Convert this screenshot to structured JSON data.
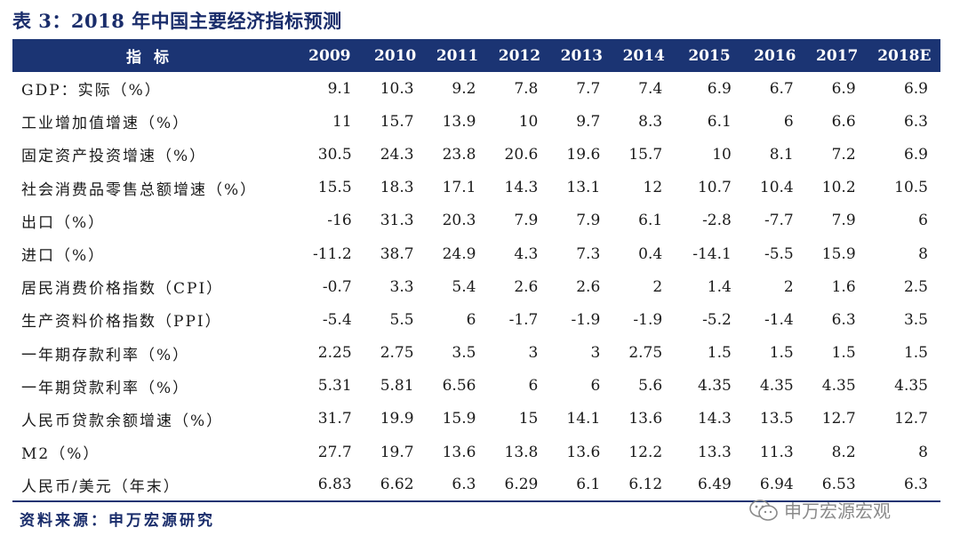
{
  "title": "表 3：2018 年中国主要经济指标预测",
  "table": {
    "header_label": "指标",
    "years": [
      "2009",
      "2010",
      "2011",
      "2012",
      "2013",
      "2014",
      "2015",
      "2016",
      "2017",
      "2018E"
    ],
    "rows": [
      {
        "label": "GDP：实际（%）",
        "values": [
          "9.1",
          "10.3",
          "9.2",
          "7.8",
          "7.7",
          "7.4",
          "6.9",
          "6.7",
          "6.9",
          "6.9"
        ]
      },
      {
        "label": "工业增加值增速（%）",
        "values": [
          "11",
          "15.7",
          "13.9",
          "10",
          "9.7",
          "8.3",
          "6.1",
          "6",
          "6.6",
          "6.3"
        ]
      },
      {
        "label": "固定资产投资增速（%）",
        "values": [
          "30.5",
          "24.3",
          "23.8",
          "20.6",
          "19.6",
          "15.7",
          "10",
          "8.1",
          "7.2",
          "6.9"
        ]
      },
      {
        "label": "社会消费品零售总额增速（%）",
        "values": [
          "15.5",
          "18.3",
          "17.1",
          "14.3",
          "13.1",
          "12",
          "10.7",
          "10.4",
          "10.2",
          "10.5"
        ]
      },
      {
        "label": "出口（%）",
        "values": [
          "-16",
          "31.3",
          "20.3",
          "7.9",
          "7.9",
          "6.1",
          "-2.8",
          "-7.7",
          "7.9",
          "6"
        ]
      },
      {
        "label": "进口（%）",
        "values": [
          "-11.2",
          "38.7",
          "24.9",
          "4.3",
          "7.3",
          "0.4",
          "-14.1",
          "-5.5",
          "15.9",
          "8"
        ]
      },
      {
        "label": "居民消费价格指数（CPI）",
        "values": [
          "-0.7",
          "3.3",
          "5.4",
          "2.6",
          "2.6",
          "2",
          "1.4",
          "2",
          "1.6",
          "2.5"
        ]
      },
      {
        "label": "生产资料价格指数（PPI）",
        "values": [
          "-5.4",
          "5.5",
          "6",
          "-1.7",
          "-1.9",
          "-1.9",
          "-5.2",
          "-1.4",
          "6.3",
          "3.5"
        ]
      },
      {
        "label": "一年期存款利率（%）",
        "values": [
          "2.25",
          "2.75",
          "3.5",
          "3",
          "3",
          "2.75",
          "1.5",
          "1.5",
          "1.5",
          "1.5"
        ]
      },
      {
        "label": "一年期贷款利率（%）",
        "values": [
          "5.31",
          "5.81",
          "6.56",
          "6",
          "6",
          "5.6",
          "4.35",
          "4.35",
          "4.35",
          "4.35"
        ]
      },
      {
        "label": "人民币贷款余额增速（%）",
        "values": [
          "31.7",
          "19.9",
          "15.9",
          "15",
          "14.1",
          "13.6",
          "14.3",
          "13.5",
          "12.7",
          "12.7"
        ]
      },
      {
        "label": "M2（%）",
        "values": [
          "27.7",
          "19.7",
          "13.6",
          "13.8",
          "13.6",
          "12.2",
          "13.3",
          "11.3",
          "8.2",
          "8"
        ]
      },
      {
        "label": "人民币/美元（年末）",
        "values": [
          "6.83",
          "6.62",
          "6.3",
          "6.29",
          "6.1",
          "6.12",
          "6.49",
          "6.94",
          "6.53",
          "6.3"
        ]
      }
    ]
  },
  "source": "资料来源：申万宏源研究",
  "watermark": {
    "text": "申万宏源宏观",
    "icon": "wechat-icon"
  },
  "colors": {
    "header_bg": "#1b3473",
    "title": "#1a2d6b"
  }
}
